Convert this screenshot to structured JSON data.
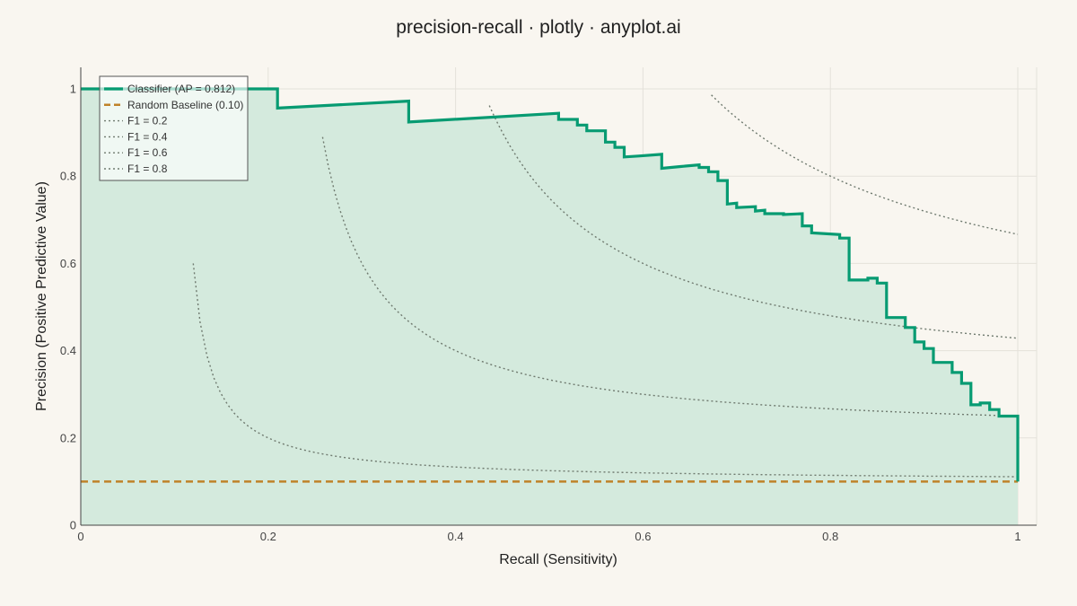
{
  "chart_data": {
    "type": "line",
    "title": "precision-recall · plotly · anyplot.ai",
    "xlabel": "Recall (Sensitivity)",
    "ylabel": "Precision (Positive Predictive Value)",
    "xlim": [
      0,
      1.02
    ],
    "ylim": [
      0,
      1.05
    ],
    "x_ticks": [
      0,
      0.2,
      0.4,
      0.6,
      0.8,
      1
    ],
    "x_tick_labels": [
      "0",
      "0.2",
      "0.4",
      "0.6",
      "0.8",
      "1"
    ],
    "y_ticks": [
      0,
      0.2,
      0.4,
      0.6,
      0.8,
      1
    ],
    "y_tick_labels": [
      "0",
      "0.2",
      "0.4",
      "0.6",
      "0.8",
      "1"
    ],
    "grid": true,
    "legend_position": "top-left",
    "colors": {
      "background": "#F9F6F0",
      "classifier": "#079B72",
      "classifier_fill": "#D4EADD",
      "baseline": "#BF8229",
      "iso_f1": "#6F7A6F",
      "grid": "#E4E1DA",
      "axis": "#444444"
    },
    "series": [
      {
        "name": "Classifier (AP = 0.812)",
        "style": "step-line-filled",
        "points": [
          [
            0,
            1.0
          ],
          [
            0.21,
            1.0
          ],
          [
            0.21,
            0.956
          ],
          [
            0.35,
            0.972
          ],
          [
            0.35,
            0.924
          ],
          [
            0.51,
            0.944
          ],
          [
            0.51,
            0.93
          ],
          [
            0.53,
            0.93
          ],
          [
            0.53,
            0.917
          ],
          [
            0.54,
            0.917
          ],
          [
            0.54,
            0.904
          ],
          [
            0.56,
            0.904
          ],
          [
            0.56,
            0.878
          ],
          [
            0.57,
            0.878
          ],
          [
            0.57,
            0.866
          ],
          [
            0.58,
            0.866
          ],
          [
            0.58,
            0.844
          ],
          [
            0.595,
            0.846
          ],
          [
            0.595,
            0.846
          ],
          [
            0.62,
            0.85
          ],
          [
            0.62,
            0.818
          ],
          [
            0.64,
            0.822
          ],
          [
            0.64,
            0.822
          ],
          [
            0.66,
            0.826
          ],
          [
            0.66,
            0.82
          ],
          [
            0.67,
            0.82
          ],
          [
            0.67,
            0.81
          ],
          [
            0.68,
            0.81
          ],
          [
            0.68,
            0.79
          ],
          [
            0.69,
            0.79
          ],
          [
            0.69,
            0.736
          ],
          [
            0.7,
            0.738
          ],
          [
            0.7,
            0.728
          ],
          [
            0.72,
            0.73
          ],
          [
            0.72,
            0.72
          ],
          [
            0.73,
            0.722
          ],
          [
            0.73,
            0.714
          ],
          [
            0.75,
            0.714
          ],
          [
            0.75,
            0.712
          ],
          [
            0.77,
            0.714
          ],
          [
            0.77,
            0.686
          ],
          [
            0.78,
            0.686
          ],
          [
            0.78,
            0.67
          ],
          [
            0.81,
            0.666
          ],
          [
            0.81,
            0.658
          ],
          [
            0.82,
            0.658
          ],
          [
            0.82,
            0.562
          ],
          [
            0.84,
            0.562
          ],
          [
            0.84,
            0.566
          ],
          [
            0.85,
            0.566
          ],
          [
            0.85,
            0.555
          ],
          [
            0.86,
            0.555
          ],
          [
            0.86,
            0.476
          ],
          [
            0.88,
            0.476
          ],
          [
            0.88,
            0.453
          ],
          [
            0.89,
            0.453
          ],
          [
            0.89,
            0.42
          ],
          [
            0.9,
            0.42
          ],
          [
            0.9,
            0.405
          ],
          [
            0.91,
            0.405
          ],
          [
            0.91,
            0.373
          ],
          [
            0.93,
            0.373
          ],
          [
            0.93,
            0.35
          ],
          [
            0.94,
            0.35
          ],
          [
            0.94,
            0.325
          ],
          [
            0.95,
            0.325
          ],
          [
            0.95,
            0.276
          ],
          [
            0.96,
            0.276
          ],
          [
            0.96,
            0.28
          ],
          [
            0.97,
            0.28
          ],
          [
            0.97,
            0.265
          ],
          [
            0.98,
            0.265
          ],
          [
            0.98,
            0.25
          ],
          [
            1.0,
            0.25
          ],
          [
            1.0,
            0.1
          ]
        ]
      },
      {
        "name": "Random Baseline (0.10)",
        "style": "dashed",
        "points": [
          [
            0,
            0.1
          ],
          [
            1.0,
            0.1
          ]
        ]
      },
      {
        "name": "F1 = 0.2",
        "style": "dotted",
        "f1": 0.2,
        "x_range": [
          0.12,
          1.0
        ]
      },
      {
        "name": "F1 = 0.4",
        "style": "dotted",
        "f1": 0.4,
        "x_range": [
          0.258,
          1.0
        ]
      },
      {
        "name": "F1 = 0.6",
        "style": "dotted",
        "f1": 0.6,
        "x_range": [
          0.436,
          1.0
        ]
      },
      {
        "name": "F1 = 0.8",
        "style": "dotted",
        "f1": 0.8,
        "x_range": [
          0.673,
          1.0
        ]
      }
    ]
  }
}
